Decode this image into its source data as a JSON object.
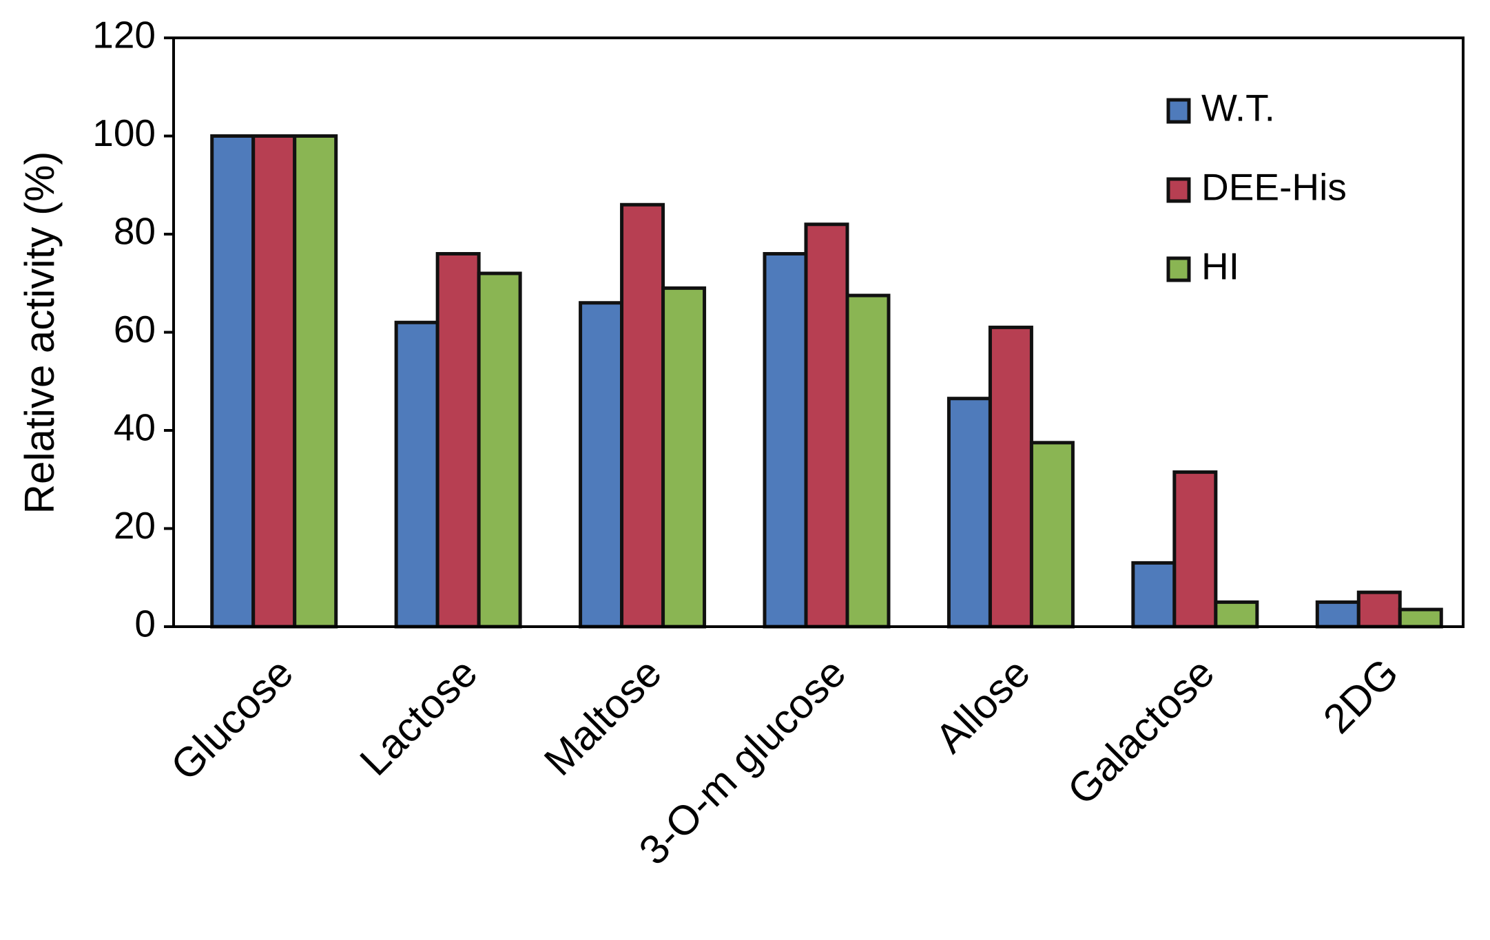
{
  "chart_data": {
    "type": "bar",
    "y_label": "Relative activity (%)",
    "categories": [
      "Glucose",
      "Lactose",
      "Maltose",
      "3-O-m glucose",
      "Allose",
      "Galactose",
      "2DG"
    ],
    "series": [
      {
        "name": "W.T.",
        "color": "#4f7bbb",
        "values": [
          100,
          62,
          66,
          76,
          46.5,
          13,
          5
        ]
      },
      {
        "name": "DEE-His",
        "color": "#b73f52",
        "values": [
          100,
          76,
          86,
          82,
          61,
          31.5,
          7
        ]
      },
      {
        "name": "HI",
        "color": "#8ab553",
        "values": [
          100,
          72,
          69,
          67.5,
          37.5,
          5,
          3.5
        ]
      }
    ],
    "ylim": [
      0,
      120
    ],
    "yticks": [
      0,
      20,
      40,
      60,
      80,
      100,
      120
    ],
    "legend": "upper right"
  }
}
